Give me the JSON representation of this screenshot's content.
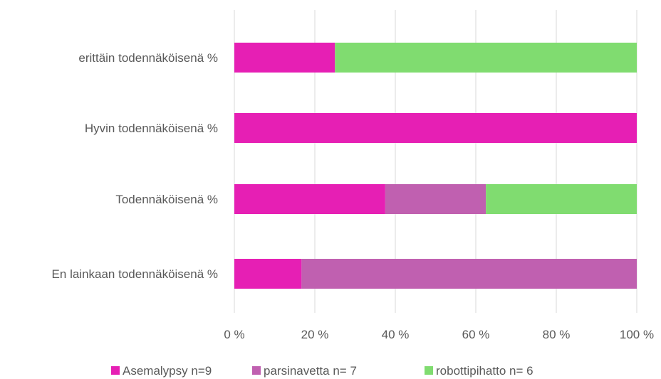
{
  "chart_data": {
    "type": "bar",
    "orientation": "horizontal",
    "stacked": "percent",
    "categories": [
      "erittäin todennäköisenä %",
      "Hyvin todennäköisenä %",
      "Todennäköisenä %",
      "En lainkaan todennäköisenä %"
    ],
    "series": [
      {
        "name": "Asemalypsy n=9",
        "color": "#e61fb4",
        "values": [
          25,
          100,
          37.5,
          16.7
        ]
      },
      {
        "name": "parsinavetta n= 7",
        "color": "#c060b0",
        "values": [
          0,
          0,
          25,
          83.3
        ]
      },
      {
        "name": "robottipihatto n= 6",
        "color": "#80dc70",
        "values": [
          75,
          0,
          37.5,
          0
        ]
      }
    ],
    "x_ticks": [
      "0 %",
      "20 %",
      "40 %",
      "60 %",
      "80 %",
      "100 %"
    ],
    "xlim": [
      0,
      100
    ],
    "grid": "vertical",
    "legend": "bottom"
  }
}
